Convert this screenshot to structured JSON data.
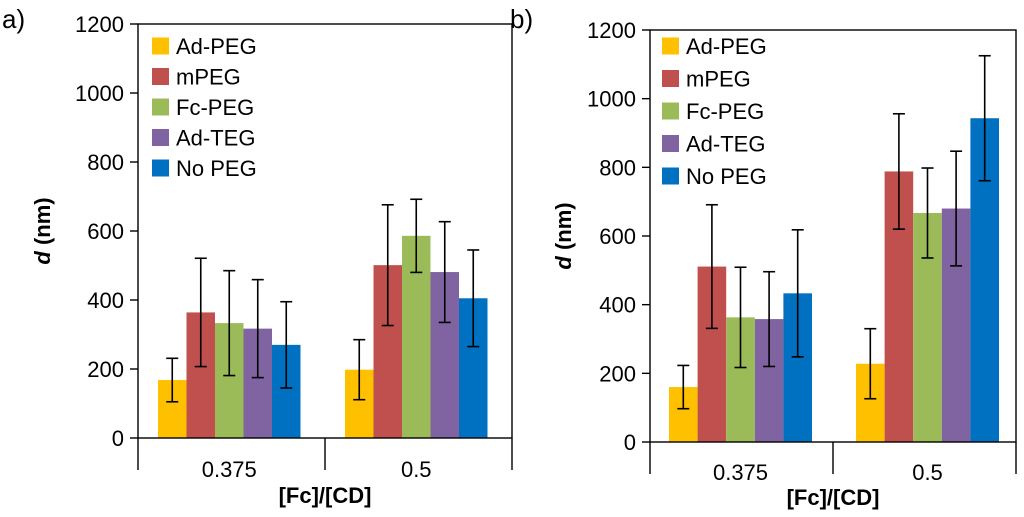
{
  "series_colors": [
    "#ffc000",
    "#c0504d",
    "#9bbb59",
    "#8064a2",
    "#0070c0"
  ],
  "chart_data": [
    {
      "type": "bar",
      "panel_label": "a)",
      "xlabel": "[Fc]/[CD]",
      "ylabel_italic": "d",
      "ylabel_unit": " (nm)",
      "ylim": [
        0,
        1200
      ],
      "yticks": [
        "0",
        "200",
        "400",
        "600",
        "800",
        "1000",
        "1200"
      ],
      "categories": [
        "0.375",
        "0.5"
      ],
      "legend_position": "top-left",
      "series": [
        {
          "name": "Ad-PEG",
          "values": [
            168,
            198
          ],
          "errors": [
            63,
            87
          ]
        },
        {
          "name": "mPEG",
          "values": [
            364,
            501
          ],
          "errors": [
            157,
            175
          ]
        },
        {
          "name": "Fc-PEG",
          "values": [
            333,
            586
          ],
          "errors": [
            152,
            106
          ]
        },
        {
          "name": "Ad-TEG",
          "values": [
            317,
            481
          ],
          "errors": [
            142,
            146
          ]
        },
        {
          "name": "No PEG",
          "values": [
            270,
            405
          ],
          "errors": [
            125,
            140
          ]
        }
      ]
    },
    {
      "type": "bar",
      "panel_label": "b)",
      "xlabel": "[Fc]/[CD]",
      "ylabel_italic": "d",
      "ylabel_unit": " (nm)",
      "ylim": [
        0,
        1200
      ],
      "yticks": [
        "0",
        "200",
        "400",
        "600",
        "800",
        "1000",
        "1200"
      ],
      "categories": [
        "0.375",
        "0.5"
      ],
      "legend_position": "top-left",
      "series": [
        {
          "name": "Ad-PEG",
          "values": [
            160,
            228
          ],
          "errors": [
            63,
            102
          ]
        },
        {
          "name": "mPEG",
          "values": [
            511,
            788
          ],
          "errors": [
            180,
            168
          ]
        },
        {
          "name": "Fc-PEG",
          "values": [
            363,
            667
          ],
          "errors": [
            146,
            131
          ]
        },
        {
          "name": "Ad-TEG",
          "values": [
            358,
            680
          ],
          "errors": [
            138,
            167
          ]
        },
        {
          "name": "No PEG",
          "values": [
            433,
            943
          ],
          "errors": [
            185,
            182
          ]
        }
      ]
    }
  ]
}
